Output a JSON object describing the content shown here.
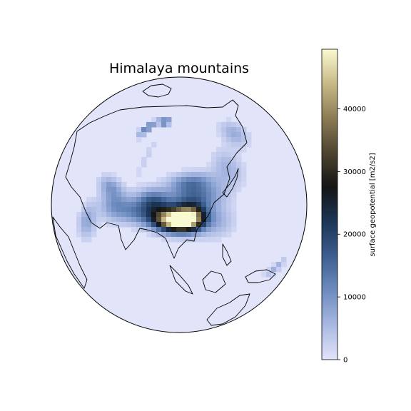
{
  "title": "Himalaya mountains",
  "colorbar": {
    "label": "surface geopotential [m2/s2]",
    "range": [
      0,
      49500
    ],
    "ticks": [
      {
        "value": 0,
        "label": "0"
      },
      {
        "value": 10000,
        "label": "10000"
      },
      {
        "value": 20000,
        "label": "20000"
      },
      {
        "value": 30000,
        "label": "30000"
      },
      {
        "value": 40000,
        "label": "40000"
      }
    ],
    "colors": [
      "#e2e4fa",
      "#a9b8e2",
      "#6e8cc0",
      "#3d5f90",
      "#1c3556",
      "#151515",
      "#4d4430",
      "#8c7c55",
      "#c8b987",
      "#fafad2"
    ]
  },
  "chart_data": {
    "type": "heatmap",
    "title": "Himalaya mountains",
    "projection": "orthographic",
    "center": {
      "lon": 90,
      "lat": 40
    },
    "variable": "surface geopotential [m2/s2]",
    "zlim": [
      0,
      49500
    ],
    "features": [
      {
        "name": "",
        "lon": 87,
        "lat": 33,
        "sigma_lon": 8,
        "sigma_lat": 3.5,
        "value": 47000
      },
      {
        "name": "",
        "lon": 96,
        "lat": 34,
        "sigma_lon": 6,
        "sigma_lat": 4,
        "value": 33000
      },
      {
        "name": "",
        "lon": 100,
        "lat": 43,
        "sigma_lon": 12,
        "sigma_lat": 5,
        "value": 14000
      },
      {
        "name": "",
        "lon": 75,
        "lat": 40,
        "sigma_lon": 7,
        "sigma_lat": 4,
        "value": 16000
      },
      {
        "name": "",
        "lon": 98,
        "lat": 50,
        "sigma_lon": 10,
        "sigma_lat": 3,
        "value": 9000
      },
      {
        "name": "",
        "lon": 65,
        "lat": 34,
        "sigma_lon": 8,
        "sigma_lat": 4,
        "value": 10000
      },
      {
        "name": "",
        "lon": 52,
        "lat": 33,
        "sigma_lon": 6,
        "sigma_lat": 5,
        "value": 8000
      },
      {
        "name": "",
        "lon": 45,
        "lat": 40,
        "sigma_lon": 6,
        "sigma_lat": 3,
        "value": 8000
      },
      {
        "name": "",
        "lon": 40,
        "lat": 20,
        "sigma_lon": 4,
        "sigma_lat": 6,
        "value": 8000
      },
      {
        "name": "",
        "lon": 110,
        "lat": 30,
        "sigma_lon": 7,
        "sigma_lat": 5,
        "value": 6000
      },
      {
        "name": "",
        "lon": 128,
        "lat": 52,
        "sigma_lon": 8,
        "sigma_lat": 6,
        "value": 6000
      },
      {
        "name": "",
        "lon": 157,
        "lat": 62,
        "sigma_lon": 10,
        "sigma_lat": 5,
        "value": 7000
      },
      {
        "name": "",
        "lon": 60,
        "lat": 60,
        "sigma_lon": 2,
        "sigma_lat": 8,
        "value": 3000
      },
      {
        "name": "",
        "lon": 140,
        "lat": -6,
        "sigma_lon": 5,
        "sigma_lat": 2,
        "value": 7000
      },
      {
        "name": "",
        "lon": 55,
        "lat": 79,
        "sigma_lon": 8,
        "sigma_lat": 2,
        "value": 15000
      },
      {
        "name": "",
        "lon": 38,
        "lat": 72,
        "sigma_lon": 4,
        "sigma_lat": 4,
        "value": 14000
      }
    ]
  }
}
